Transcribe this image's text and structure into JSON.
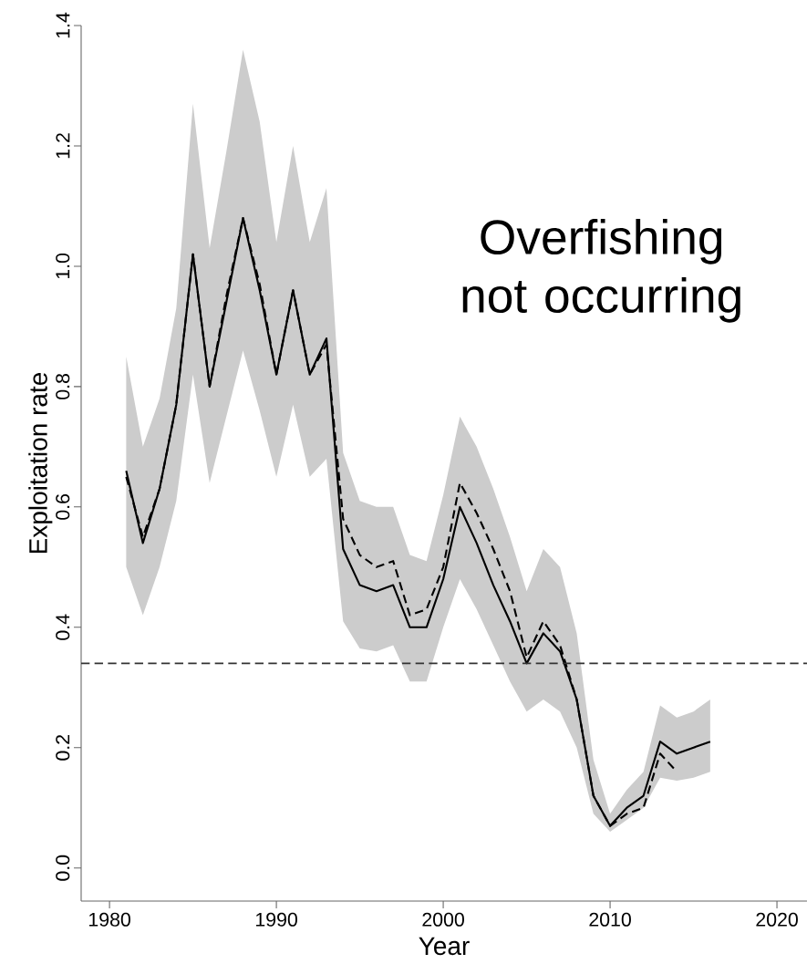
{
  "chart_data": {
    "type": "line",
    "xlabel": "Year",
    "ylabel": "Exploitation rate",
    "x": [
      1981,
      1982,
      1983,
      1984,
      1985,
      1986,
      1987,
      1988,
      1989,
      1990,
      1991,
      1992,
      1993,
      1994,
      1995,
      1996,
      1997,
      1998,
      1999,
      2000,
      2001,
      2002,
      2003,
      2004,
      2005,
      2006,
      2007,
      2008,
      2009,
      2010,
      2011,
      2012,
      2013,
      2014,
      2015,
      2016
    ],
    "series": [
      {
        "color": "#000000",
        "line_style": "solid",
        "values": [
          0.66,
          0.54,
          0.63,
          0.77,
          1.02,
          0.8,
          0.94,
          1.08,
          0.96,
          0.82,
          0.96,
          0.82,
          0.88,
          0.53,
          0.47,
          0.46,
          0.47,
          0.4,
          0.4,
          0.48,
          0.6,
          0.54,
          0.47,
          0.41,
          0.34,
          0.39,
          0.36,
          0.28,
          0.12,
          0.07,
          0.1,
          0.12,
          0.21,
          0.19,
          0.2,
          0.21
        ],
        "upper": [
          0.85,
          0.7,
          0.78,
          0.93,
          1.27,
          1.03,
          1.19,
          1.36,
          1.24,
          1.04,
          1.2,
          1.04,
          1.13,
          0.69,
          0.61,
          0.6,
          0.6,
          0.52,
          0.51,
          0.62,
          0.75,
          0.7,
          0.63,
          0.55,
          0.46,
          0.53,
          0.5,
          0.39,
          0.18,
          0.09,
          0.13,
          0.16,
          0.27,
          0.25,
          0.26,
          0.28
        ],
        "lower": [
          0.5,
          0.42,
          0.5,
          0.61,
          0.82,
          0.64,
          0.75,
          0.86,
          0.76,
          0.65,
          0.77,
          0.65,
          0.68,
          0.41,
          0.365,
          0.36,
          0.37,
          0.31,
          0.31,
          0.4,
          0.48,
          0.43,
          0.37,
          0.31,
          0.26,
          0.28,
          0.26,
          0.2,
          0.09,
          0.06,
          0.08,
          0.1,
          0.15,
          0.145,
          0.15,
          0.16
        ]
      },
      {
        "color": "#000000",
        "line_style": "dashed",
        "values": [
          0.65,
          0.55,
          0.63,
          0.77,
          1.02,
          0.8,
          0.95,
          1.08,
          0.97,
          0.82,
          0.96,
          0.82,
          0.87,
          0.58,
          0.52,
          0.5,
          0.51,
          0.42,
          0.43,
          0.5,
          0.64,
          0.59,
          0.53,
          0.46,
          0.35,
          0.41,
          0.37,
          0.28,
          0.12,
          0.07,
          0.09,
          0.1,
          0.19,
          0.16,
          null,
          null
        ]
      }
    ],
    "ref_lines": [
      {
        "axis": "y",
        "value": 0.34,
        "color": "#333333",
        "line_style": "dashed"
      }
    ],
    "annotations": [
      "Overfishing not occurring"
    ],
    "xlim": [
      1978.3,
      2021.8
    ],
    "ylim": [
      -0.055,
      1.4
    ],
    "xticks": [
      1980,
      1990,
      2000,
      2010,
      2020
    ],
    "yticks": [
      {
        "value": 0,
        "label": "0.0"
      },
      0.2,
      0.4,
      0.6,
      0.8,
      {
        "value": 1,
        "label": "1.0"
      },
      1.2,
      1.4
    ]
  }
}
